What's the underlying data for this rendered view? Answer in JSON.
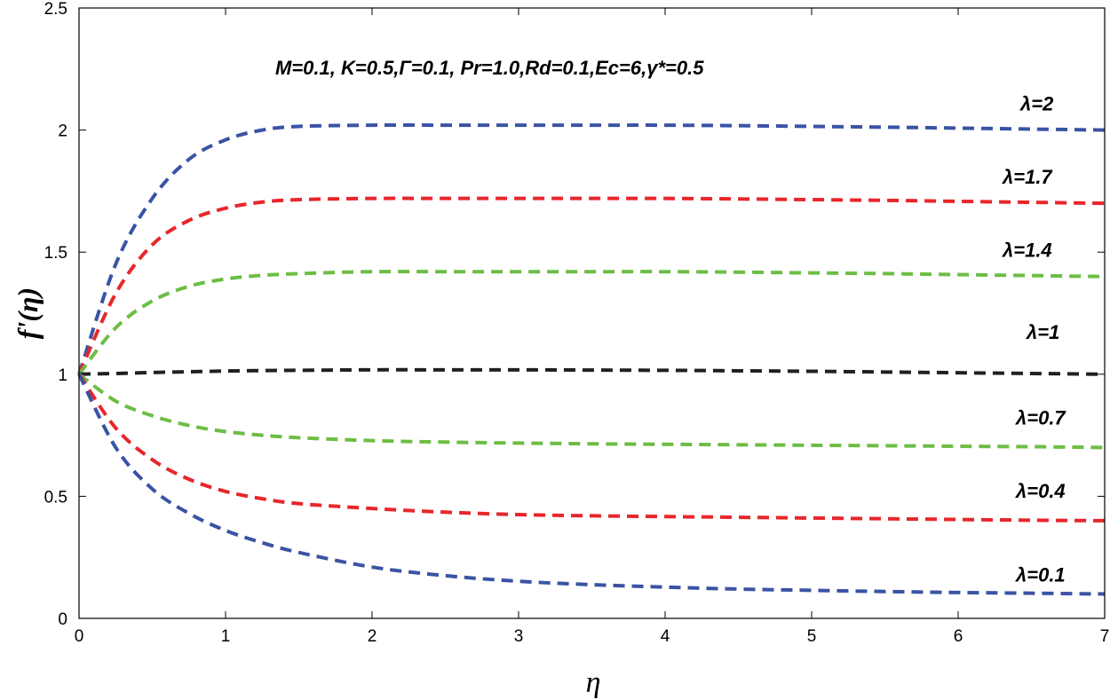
{
  "chart_data": {
    "type": "line",
    "title": "",
    "annotation": "M=0.1, K=0.5,Γ=0.1, Pr=1.0,Rd=0.1,Ec=6,γ*=0.5",
    "xlabel": "η",
    "ylabel": "f'(η)",
    "xlim": [
      0,
      7
    ],
    "ylim": [
      0,
      2.5
    ],
    "xticks": [
      "0",
      "1",
      "2",
      "3",
      "4",
      "5",
      "6",
      "7"
    ],
    "yticks": [
      "0",
      "0.5",
      "1",
      "1.5",
      "2",
      "2.5"
    ],
    "x": [
      0,
      0.25,
      0.5,
      0.75,
      1,
      1.25,
      1.5,
      2,
      2.5,
      3,
      3.5,
      4,
      4.5,
      5,
      5.5,
      6,
      6.5,
      7
    ],
    "series": [
      {
        "name": "λ=2",
        "color": "#3a53a4",
        "values": [
          1.0,
          1.45,
          1.72,
          1.88,
          1.96,
          2.0,
          2.015,
          2.02,
          2.02,
          2.02,
          2.02,
          2.02,
          2.018,
          2.015,
          2.012,
          2.008,
          2.004,
          2.0
        ]
      },
      {
        "name": "λ=1.7",
        "color": "#e8262b",
        "values": [
          1.0,
          1.33,
          1.53,
          1.63,
          1.68,
          1.705,
          1.715,
          1.72,
          1.72,
          1.72,
          1.72,
          1.72,
          1.718,
          1.715,
          1.712,
          1.708,
          1.704,
          1.7
        ]
      },
      {
        "name": "λ=1.4",
        "color": "#6cbd45",
        "values": [
          1.0,
          1.19,
          1.3,
          1.36,
          1.39,
          1.405,
          1.412,
          1.42,
          1.42,
          1.42,
          1.42,
          1.42,
          1.418,
          1.415,
          1.412,
          1.408,
          1.404,
          1.4
        ]
      },
      {
        "name": "λ=1",
        "color": "#231f20",
        "values": [
          1.0,
          1.003,
          1.007,
          1.01,
          1.013,
          1.015,
          1.016,
          1.018,
          1.018,
          1.018,
          1.017,
          1.016,
          1.014,
          1.012,
          1.009,
          1.006,
          1.003,
          1.0
        ]
      },
      {
        "name": "λ=0.7",
        "color": "#6cbd45",
        "values": [
          1.0,
          0.89,
          0.83,
          0.79,
          0.765,
          0.75,
          0.74,
          0.728,
          0.722,
          0.718,
          0.715,
          0.713,
          0.711,
          0.709,
          0.707,
          0.705,
          0.703,
          0.7
        ]
      },
      {
        "name": "λ=0.4",
        "color": "#e8262b",
        "values": [
          1.0,
          0.78,
          0.65,
          0.57,
          0.52,
          0.49,
          0.47,
          0.45,
          0.435,
          0.425,
          0.42,
          0.417,
          0.414,
          0.411,
          0.408,
          0.405,
          0.402,
          0.4
        ]
      },
      {
        "name": "λ=0.1",
        "color": "#3a53a4",
        "values": [
          1.0,
          0.7,
          0.53,
          0.43,
          0.36,
          0.31,
          0.27,
          0.21,
          0.175,
          0.152,
          0.138,
          0.128,
          0.12,
          0.115,
          0.11,
          0.106,
          0.103,
          0.1
        ]
      }
    ]
  }
}
